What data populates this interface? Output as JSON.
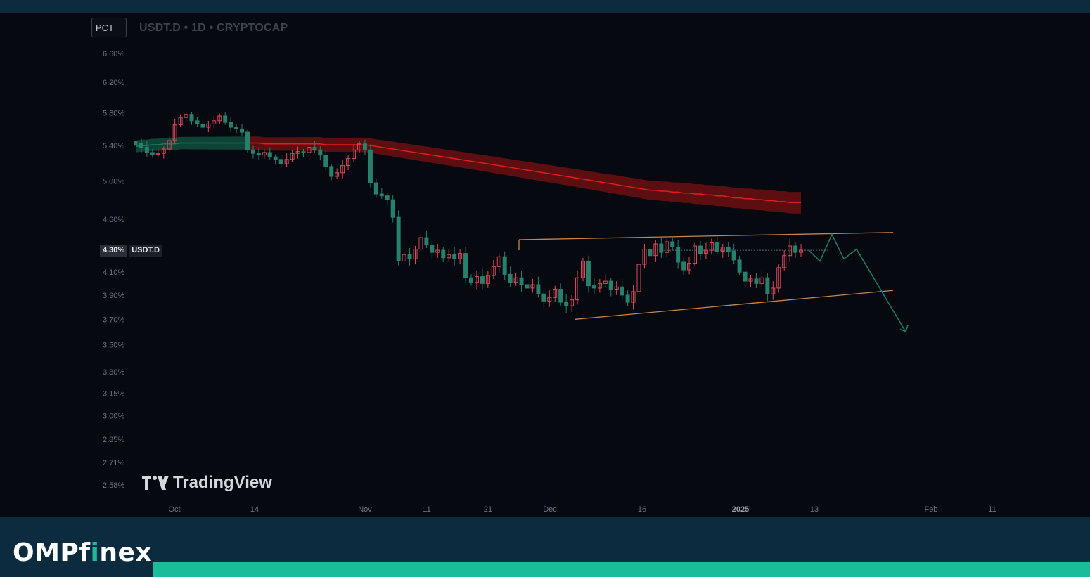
{
  "header": {
    "scale_button": "PCT",
    "symbol_line": "USDT.D • 1D • CRYPTOCAP"
  },
  "price_tag": {
    "value": "4.30%",
    "symbol": "USDT.D"
  },
  "watermark": "TradingView",
  "brand": {
    "part1": "OMPf",
    "part2": "i",
    "part3": "nex"
  },
  "colors": {
    "up": "#26806b",
    "down": "#e0475a",
    "band_red": "#7a1010",
    "band_green": "#0f4a3c",
    "trendline": "#c8854a",
    "projection": "#1f7a64",
    "accent": "#1abc9c"
  },
  "chart_data": {
    "type": "candlestick",
    "title": "USDT.D • 1D • CRYPTOCAP",
    "ylabel": "",
    "xlabel": "",
    "y_axis_ticks": [
      "6.60%",
      "6.20%",
      "5.80%",
      "5.40%",
      "5.00%",
      "4.60%",
      "4.30%",
      "4.10%",
      "3.90%",
      "3.70%",
      "3.50%",
      "3.30%",
      "3.15%",
      "3.00%",
      "2.85%",
      "2.71%",
      "2.58%"
    ],
    "x_axis_ticks": [
      {
        "label": "Oct",
        "bold": false
      },
      {
        "label": "14",
        "bold": false
      },
      {
        "label": "Nov",
        "bold": false
      },
      {
        "label": "11",
        "bold": false
      },
      {
        "label": "21",
        "bold": false
      },
      {
        "label": "Dec",
        "bold": false
      },
      {
        "label": "16",
        "bold": false
      },
      {
        "label": "2025",
        "bold": true
      },
      {
        "label": "13",
        "bold": false
      },
      {
        "label": "Feb",
        "bold": false
      },
      {
        "label": "11",
        "bold": false
      }
    ],
    "last_value": 4.3,
    "closes": [
      5.43,
      5.38,
      5.32,
      5.3,
      5.31,
      5.36,
      5.46,
      5.65,
      5.74,
      5.78,
      5.7,
      5.66,
      5.62,
      5.66,
      5.7,
      5.76,
      5.68,
      5.62,
      5.6,
      5.56,
      5.35,
      5.31,
      5.29,
      5.32,
      5.27,
      5.24,
      5.19,
      5.24,
      5.31,
      5.33,
      5.32,
      5.38,
      5.35,
      5.29,
      5.16,
      5.05,
      5.09,
      5.17,
      5.25,
      5.35,
      5.42,
      5.35,
      4.98,
      4.86,
      4.84,
      4.8,
      4.62,
      4.2,
      4.26,
      4.22,
      4.31,
      4.42,
      4.35,
      4.28,
      4.3,
      4.23,
      4.26,
      4.22,
      4.27,
      4.05,
      4.01,
      4.06,
      4.0,
      4.07,
      4.15,
      4.24,
      4.08,
      4.01,
      4.05,
      3.99,
      3.96,
      3.99,
      3.91,
      3.85,
      3.88,
      3.95,
      3.84,
      3.81,
      3.86,
      4.05,
      4.2,
      3.98,
      3.96,
      4.0,
      4.02,
      3.95,
      3.97,
      3.9,
      3.84,
      3.93,
      4.17,
      4.31,
      4.25,
      4.36,
      4.28,
      4.38,
      4.33,
      4.19,
      4.12,
      4.18,
      4.34,
      4.27,
      4.3,
      4.37,
      4.29,
      4.33,
      4.29,
      4.21,
      4.1,
      4.02,
      4.04,
      4.0,
      4.05,
      3.91,
      3.96,
      4.14,
      4.25,
      4.34,
      4.28,
      4.3
    ],
    "band_mid": [
      5.39,
      5.4,
      5.4,
      5.41,
      5.41,
      5.42,
      5.42,
      5.42,
      5.43,
      5.43,
      5.43,
      5.43,
      5.43,
      5.43,
      5.43,
      5.43,
      5.43,
      5.43,
      5.43,
      5.43,
      5.43,
      5.43,
      5.43,
      5.42,
      5.42,
      5.42,
      5.42,
      5.42,
      5.42,
      5.42,
      5.42,
      5.42,
      5.42,
      5.42,
      5.41,
      5.41,
      5.41,
      5.41,
      5.41,
      5.41,
      5.41,
      5.41,
      5.4,
      5.39,
      5.38,
      5.37,
      5.36,
      5.35,
      5.34,
      5.33,
      5.32,
      5.31,
      5.3,
      5.29,
      5.28,
      5.27,
      5.26,
      5.25,
      5.24,
      5.23,
      5.22,
      5.21,
      5.2,
      5.19,
      5.18,
      5.17,
      5.16,
      5.15,
      5.14,
      5.13,
      5.12,
      5.11,
      5.1,
      5.09,
      5.08,
      5.07,
      5.06,
      5.05,
      5.04,
      5.03,
      5.02,
      5.01,
      5.0,
      4.99,
      4.98,
      4.97,
      4.96,
      4.95,
      4.94,
      4.93,
      4.92,
      4.91,
      4.9,
      4.9,
      4.89,
      4.89,
      4.88,
      4.88,
      4.87,
      4.87,
      4.86,
      4.86,
      4.85,
      4.85,
      4.84,
      4.84,
      4.83,
      4.82,
      4.82,
      4.81,
      4.81,
      4.8,
      4.8,
      4.79,
      4.79,
      4.78,
      4.78,
      4.77,
      4.77,
      4.77
    ],
    "band_green_until_index": 20,
    "wedge": {
      "upper": [
        [
          6,
          4.4
        ],
        [
          72,
          4.46
        ],
        [
          136,
          4.47
        ]
      ],
      "lower": [
        [
          21,
          3.7
        ],
        [
          81,
          3.8
        ],
        [
          136,
          3.94
        ]
      ],
      "upper_value_at_end": 4.47,
      "lower_value_at_end": 3.94
    },
    "resistance_level": 4.3,
    "projection_path": [
      4.3,
      4.2,
      4.45,
      4.22,
      4.31,
      3.6
    ]
  }
}
